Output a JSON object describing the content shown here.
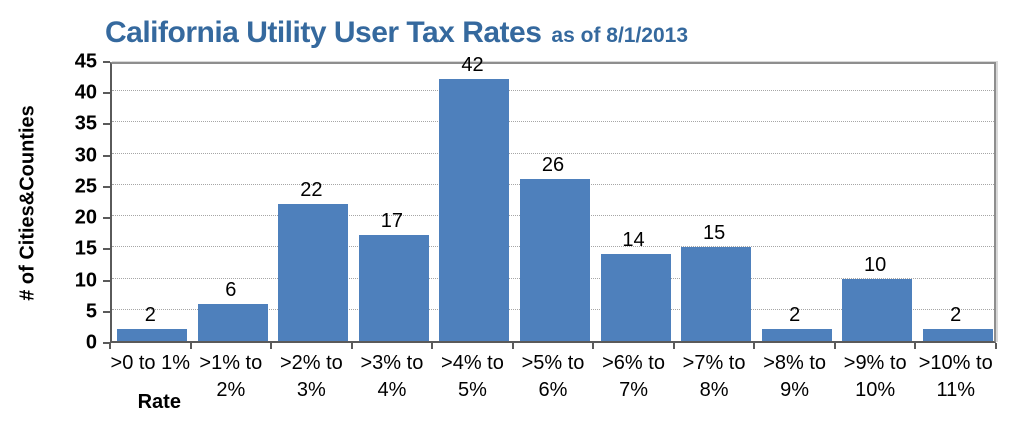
{
  "title": {
    "main": "California Utility User Tax Rates",
    "suffix": "as of 8/1/2013"
  },
  "y_axis": {
    "title": "# of Cities&Counties",
    "ticks": [
      0,
      5,
      10,
      15,
      20,
      25,
      30,
      35,
      40,
      45
    ]
  },
  "x_axis": {
    "title": "Rate"
  },
  "chart_data": {
    "type": "bar",
    "title": "California Utility User Tax Rates as of 8/1/2013",
    "categories": [
      ">0 to 1%",
      ">1% to 2%",
      ">2% to 3%",
      ">3% to 4%",
      ">4% to 5%",
      ">5% to 6%",
      ">6% to 7%",
      ">7% to 8%",
      ">8% to 9%",
      ">9% to 10%",
      ">10% to 11%"
    ],
    "category_lines": [
      [
        ">0 to 1%"
      ],
      [
        ">1% to",
        "2%"
      ],
      [
        ">2% to",
        "3%"
      ],
      [
        ">3% to",
        "4%"
      ],
      [
        ">4% to",
        "5%"
      ],
      [
        ">5% to",
        "6%"
      ],
      [
        ">6% to",
        "7%"
      ],
      [
        ">7% to",
        "8%"
      ],
      [
        ">8% to",
        "9%"
      ],
      [
        ">9% to",
        "10%"
      ],
      [
        ">10% to",
        "11%"
      ]
    ],
    "values": [
      2,
      6,
      22,
      17,
      42,
      26,
      14,
      15,
      2,
      10,
      2
    ],
    "xlabel": "Rate",
    "ylabel": "# of Cities&Counties",
    "ylim": [
      0,
      45
    ],
    "ytick_step": 5,
    "grid": true,
    "legend": false,
    "data_labels": true
  },
  "colors": {
    "title_blue": "#35699E",
    "bar_blue": "#4E80BC",
    "grid_gray": "#A6A6A6",
    "frame_gray": "#8E8E8E",
    "axis_dark": "#5A5A5A",
    "text_black": "#000000"
  }
}
